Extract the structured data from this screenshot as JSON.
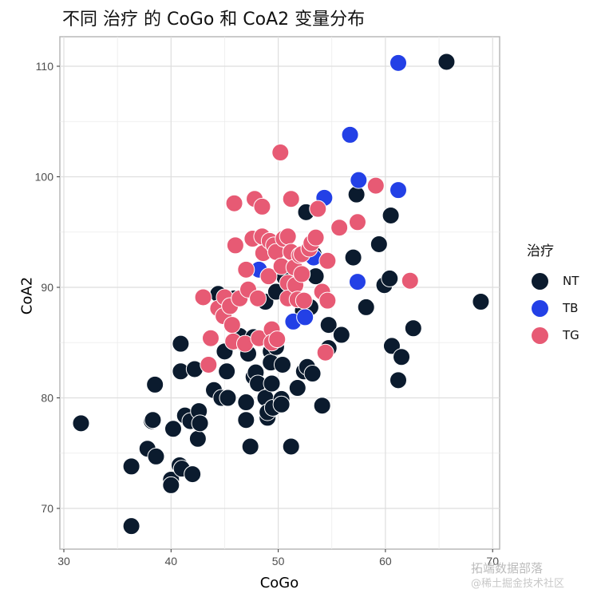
{
  "title": "不同 治疗 的 CoGo 和 CoA2 变量分布",
  "watermark": {
    "line1": "拓端数据部落",
    "line2": "@稀土掘金技术社区"
  },
  "legend": {
    "title": "治疗",
    "items": [
      {
        "label": "NT",
        "color": "#0b1b2e"
      },
      {
        "label": "TB",
        "color": "#2340e6"
      },
      {
        "label": "TG",
        "color": "#e75a74"
      }
    ]
  },
  "chart_data": {
    "type": "scatter",
    "title": "不同 治疗 的 CoGo 和 CoA2 变量分布",
    "xlabel": "CoGo",
    "ylabel": "CoA2",
    "xlim": [
      29.5,
      70.8
    ],
    "ylim": [
      66.5,
      112.7
    ],
    "xticks": [
      30,
      40,
      50,
      60,
      70
    ],
    "yticks": [
      70,
      80,
      90,
      100,
      110
    ],
    "grid": true,
    "legend_position": "right",
    "series": [
      {
        "name": "NT",
        "color": "#0b1b2e",
        "points": [
          [
            31.6,
            77.7
          ],
          [
            36.3,
            68.4
          ],
          [
            36.3,
            73.8
          ],
          [
            37.8,
            75.4
          ],
          [
            38.2,
            77.9
          ],
          [
            38.3,
            78.0
          ],
          [
            38.6,
            74.7
          ],
          [
            38.5,
            81.2
          ],
          [
            40.0,
            72.6
          ],
          [
            40.0,
            72.1
          ],
          [
            40.2,
            77.2
          ],
          [
            40.8,
            73.9
          ],
          [
            41.0,
            73.6
          ],
          [
            40.9,
            82.4
          ],
          [
            40.9,
            84.9
          ],
          [
            41.3,
            78.4
          ],
          [
            41.8,
            77.9
          ],
          [
            42.0,
            73.1
          ],
          [
            42.2,
            82.6
          ],
          [
            42.5,
            76.3
          ],
          [
            42.6,
            78.8
          ],
          [
            42.7,
            77.7
          ],
          [
            44.0,
            80.7
          ],
          [
            44.4,
            89.4
          ],
          [
            44.7,
            80.0
          ],
          [
            45.0,
            84.2
          ],
          [
            45.2,
            82.4
          ],
          [
            45.3,
            80.0
          ],
          [
            45.9,
            89.0
          ],
          [
            46.4,
            85.6
          ],
          [
            46.9,
            84.8
          ],
          [
            47.0,
            79.6
          ],
          [
            47.0,
            78.0
          ],
          [
            47.2,
            84.0
          ],
          [
            47.4,
            75.6
          ],
          [
            47.7,
            81.9
          ],
          [
            47.7,
            85.5
          ],
          [
            47.9,
            82.3
          ],
          [
            48.1,
            81.3
          ],
          [
            48.8,
            88.7
          ],
          [
            48.8,
            80.0
          ],
          [
            49.0,
            78.2
          ],
          [
            49.0,
            78.7
          ],
          [
            49.3,
            84.2
          ],
          [
            49.3,
            83.2
          ],
          [
            49.4,
            81.3
          ],
          [
            49.5,
            79.1
          ],
          [
            49.8,
            84.6
          ],
          [
            49.8,
            89.6
          ],
          [
            50.3,
            79.9
          ],
          [
            50.3,
            79.4
          ],
          [
            50.4,
            83.0
          ],
          [
            50.6,
            90.9
          ],
          [
            51.0,
            89.0
          ],
          [
            51.2,
            75.6
          ],
          [
            51.8,
            80.9
          ],
          [
            52.3,
            87.9
          ],
          [
            52.4,
            82.4
          ],
          [
            52.6,
            96.8
          ],
          [
            52.7,
            82.8
          ],
          [
            53.0,
            88.2
          ],
          [
            53.2,
            82.2
          ],
          [
            53.3,
            93.0
          ],
          [
            53.5,
            91.0
          ],
          [
            54.1,
            79.3
          ],
          [
            54.7,
            86.6
          ],
          [
            54.7,
            84.5
          ],
          [
            55.9,
            85.7
          ],
          [
            57.0,
            92.7
          ],
          [
            57.3,
            98.4
          ],
          [
            58.2,
            88.2
          ],
          [
            59.4,
            93.9
          ],
          [
            59.9,
            90.2
          ],
          [
            60.4,
            90.8
          ],
          [
            60.5,
            96.5
          ],
          [
            60.6,
            84.7
          ],
          [
            61.2,
            81.6
          ],
          [
            61.5,
            83.7
          ],
          [
            62.6,
            86.3
          ],
          [
            65.7,
            110.4
          ],
          [
            68.9,
            88.7
          ]
        ]
      },
      {
        "name": "TB",
        "color": "#2340e6",
        "points": [
          [
            48.2,
            91.6
          ],
          [
            51.4,
            86.9
          ],
          [
            51.6,
            90.1
          ],
          [
            52.5,
            87.3
          ],
          [
            53.3,
            92.7
          ],
          [
            54.3,
            98.1
          ],
          [
            56.7,
            103.8
          ],
          [
            57.5,
            99.7
          ],
          [
            57.4,
            90.5
          ],
          [
            61.2,
            110.3
          ],
          [
            61.2,
            98.8
          ]
        ]
      },
      {
        "name": "TG",
        "color": "#e75a74",
        "points": [
          [
            43.0,
            89.1
          ],
          [
            43.5,
            83.0
          ],
          [
            43.7,
            85.4
          ],
          [
            44.4,
            88.1
          ],
          [
            44.9,
            87.4
          ],
          [
            45.0,
            89.1
          ],
          [
            45.5,
            88.3
          ],
          [
            45.7,
            86.6
          ],
          [
            45.8,
            85.1
          ],
          [
            45.9,
            97.6
          ],
          [
            46.0,
            93.8
          ],
          [
            46.4,
            89.0
          ],
          [
            46.9,
            84.9
          ],
          [
            47.0,
            91.6
          ],
          [
            47.2,
            89.8
          ],
          [
            47.6,
            94.4
          ],
          [
            47.8,
            98.0
          ],
          [
            48.1,
            89.0
          ],
          [
            48.2,
            85.4
          ],
          [
            48.5,
            97.3
          ],
          [
            48.5,
            94.6
          ],
          [
            48.6,
            93.1
          ],
          [
            49.1,
            91.0
          ],
          [
            49.2,
            94.2
          ],
          [
            49.4,
            86.2
          ],
          [
            49.4,
            85.0
          ],
          [
            49.6,
            93.8
          ],
          [
            49.8,
            93.2
          ],
          [
            49.9,
            85.3
          ],
          [
            50.2,
            102.2
          ],
          [
            50.3,
            91.9
          ],
          [
            50.5,
            94.4
          ],
          [
            50.9,
            94.6
          ],
          [
            50.9,
            90.4
          ],
          [
            50.9,
            89.0
          ],
          [
            51.2,
            98.0
          ],
          [
            51.2,
            93.2
          ],
          [
            51.5,
            91.8
          ],
          [
            51.6,
            90.2
          ],
          [
            51.8,
            88.9
          ],
          [
            52.0,
            92.9
          ],
          [
            52.2,
            91.2
          ],
          [
            52.2,
            93.0
          ],
          [
            52.4,
            88.8
          ],
          [
            52.9,
            93.5
          ],
          [
            53.1,
            94.0
          ],
          [
            53.5,
            94.5
          ],
          [
            53.7,
            97.1
          ],
          [
            54.1,
            89.6
          ],
          [
            54.4,
            84.1
          ],
          [
            54.6,
            92.4
          ],
          [
            54.6,
            88.8
          ],
          [
            55.7,
            95.4
          ],
          [
            57.4,
            95.9
          ],
          [
            59.1,
            99.2
          ],
          [
            62.3,
            90.6
          ]
        ]
      }
    ]
  }
}
